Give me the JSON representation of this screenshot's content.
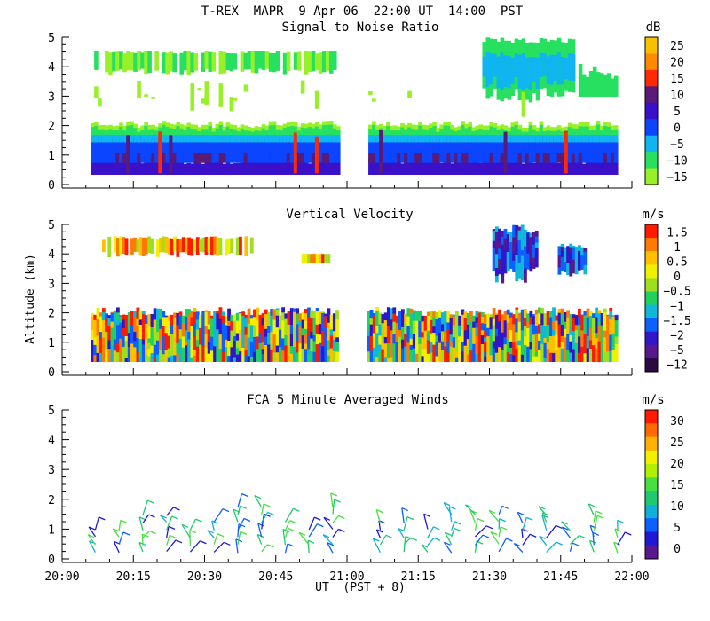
{
  "title": "T-REX  MAPR  9 Apr 06  22:00 UT  14:00  PST",
  "chart_data": [
    {
      "type": "heatmap",
      "title": "Signal to Noise Ratio",
      "ylabel": "",
      "ylim": [
        0,
        5
      ],
      "yticks": [
        "0",
        "1",
        "2",
        "3",
        "4",
        "5"
      ],
      "xlim": [
        0,
        120
      ],
      "colorbar": {
        "unit": "dB",
        "labels": [
          "25",
          "20",
          "15",
          "10",
          "5",
          "0",
          "−5",
          "−10",
          "−15"
        ],
        "colors": [
          "#f7c000",
          "#ff8a00",
          "#ff2a00",
          "#5a1a78",
          "#3a10c8",
          "#0b45ff",
          "#10b4f0",
          "#28e060",
          "#98f028"
        ]
      },
      "data_gap": [
        58,
        64
      ],
      "notes": "Strong returns (10 to 20 dB) below ~1 km, weaker (-10 to -15 dB) echo layer near 4 km; high cloud 3-5 km after 21:30"
    },
    {
      "type": "heatmap",
      "title": "Vertical Velocity",
      "ylabel": "Altitude (km)",
      "ylim": [
        0,
        5
      ],
      "yticks": [
        "0",
        "1",
        "2",
        "3",
        "4",
        "5"
      ],
      "xlim": [
        0,
        120
      ],
      "colorbar": {
        "unit": "m/s",
        "labels": [
          "1.5",
          "1",
          "0.5",
          "0",
          "−0.5",
          "−1",
          "−1.5",
          "−2",
          "−5",
          "−12"
        ],
        "colors": [
          "#ff1a00",
          "#ff7a00",
          "#ffc000",
          "#f0f000",
          "#9ee020",
          "#22d060",
          "#10b8d8",
          "#0c60ff",
          "#3018c8",
          "#5a1890",
          "#2a0a40"
        ]
      },
      "data_gap": [
        58,
        64
      ],
      "notes": "Alternating updrafts/downdrafts below 2 km; downdrafts (-2 to -5 m/s) in upper cloud after 21:30"
    },
    {
      "type": "scatter",
      "title": "FCA 5 Minute Averaged Winds",
      "ylabel": "",
      "ylim": [
        0,
        5
      ],
      "yticks": [
        "0",
        "1",
        "2",
        "3",
        "4",
        "5"
      ],
      "xlim": [
        0,
        120
      ],
      "xlabel": "UT  (PST + 8)",
      "xticks": [
        "20:00",
        "20:15",
        "20:30",
        "20:45",
        "21:00",
        "21:15",
        "21:30",
        "21:45",
        "22:00"
      ],
      "x_minutes": [
        7,
        12,
        17,
        22,
        27,
        32,
        37,
        42,
        47,
        52,
        57,
        67,
        72,
        77,
        82,
        87,
        92,
        97,
        102,
        107,
        112,
        117
      ],
      "colorbar": {
        "unit": "m/s",
        "labels": [
          "30",
          "25",
          "20",
          "15",
          "10",
          "5",
          "0"
        ],
        "colors": [
          "#ff1a00",
          "#ff6a00",
          "#ffb000",
          "#f0f000",
          "#b0f000",
          "#48e040",
          "#20c870",
          "#10b0d8",
          "#0c60ff",
          "#2018d8",
          "#5a1890"
        ]
      },
      "notes": "Wind barbs, mostly 5-15 m/s, 0.2-2 km altitude"
    }
  ]
}
